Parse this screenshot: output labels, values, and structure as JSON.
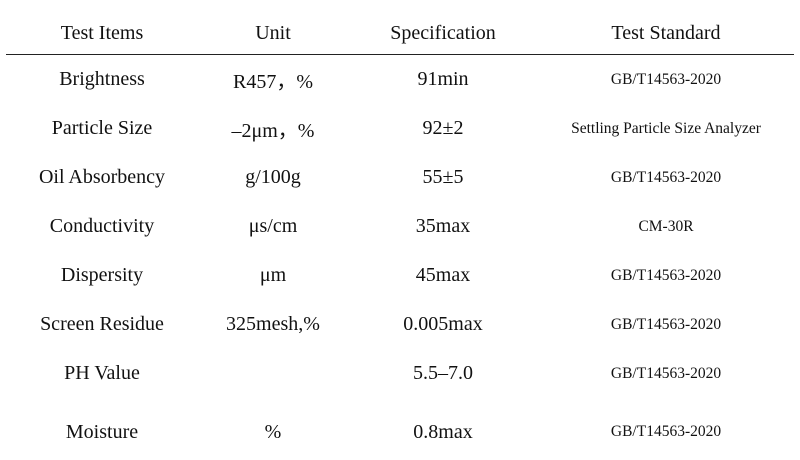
{
  "table": {
    "headers": [
      "Test Items",
      "Unit",
      "Specification",
      "Test Standard"
    ],
    "rows": [
      {
        "item": "Brightness",
        "unit": "R457，%",
        "spec": "91min",
        "standard": "GB/T14563-2020"
      },
      {
        "item": "Particle Size",
        "unit": "–2μm，%",
        "spec": "92±2",
        "standard": "Settling Particle Size Analyzer"
      },
      {
        "item": "Oil Absorbency",
        "unit": "g/100g",
        "spec": "55±5",
        "standard": "GB/T14563-2020"
      },
      {
        "item": "Conductivity",
        "unit": "μs/cm",
        "spec": "35max",
        "standard": "CM-30R"
      },
      {
        "item": "Dispersity",
        "unit": "μm",
        "spec": "45max",
        "standard": "GB/T14563-2020"
      },
      {
        "item": "Screen Residue",
        "unit": "325mesh,%",
        "spec": "0.005max",
        "standard": "GB/T14563-2020"
      },
      {
        "item": "PH Value",
        "unit": "",
        "spec": "5.5–7.0",
        "standard": "GB/T14563-2020"
      },
      {
        "item": "Moisture",
        "unit": "%",
        "spec": "0.8max",
        "standard": "GB/T14563-2020"
      }
    ]
  }
}
